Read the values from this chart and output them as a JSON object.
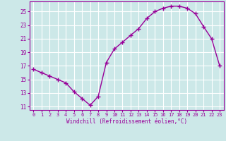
{
  "x": [
    0,
    1,
    2,
    3,
    4,
    5,
    6,
    7,
    8,
    9,
    10,
    11,
    12,
    13,
    14,
    15,
    16,
    17,
    18,
    19,
    20,
    21,
    22,
    23
  ],
  "y": [
    16.5,
    16.0,
    15.5,
    15.0,
    14.5,
    13.2,
    12.2,
    11.2,
    12.5,
    17.5,
    19.5,
    20.5,
    21.5,
    22.5,
    24.0,
    25.0,
    25.5,
    25.8,
    25.8,
    25.5,
    24.7,
    22.8,
    21.0,
    17.0
  ],
  "line_color": "#990099",
  "marker": "+",
  "marker_size": 4,
  "linewidth": 1.0,
  "markeredgewidth": 1.0,
  "xlabel": "Windchill (Refroidissement éolien,°C)",
  "ylabel": "",
  "xlim": [
    -0.5,
    23.5
  ],
  "ylim": [
    10.5,
    26.5
  ],
  "yticks": [
    11,
    13,
    15,
    17,
    19,
    21,
    23,
    25
  ],
  "xticks": [
    0,
    1,
    2,
    3,
    4,
    5,
    6,
    7,
    8,
    9,
    10,
    11,
    12,
    13,
    14,
    15,
    16,
    17,
    18,
    19,
    20,
    21,
    22,
    23
  ],
  "bg_color": "#cce8e8",
  "grid_color": "#ffffff",
  "tick_color": "#990099",
  "label_color": "#990099",
  "xlabel_fontsize": 5.5,
  "xtick_fontsize": 5.0,
  "ytick_fontsize": 5.5
}
